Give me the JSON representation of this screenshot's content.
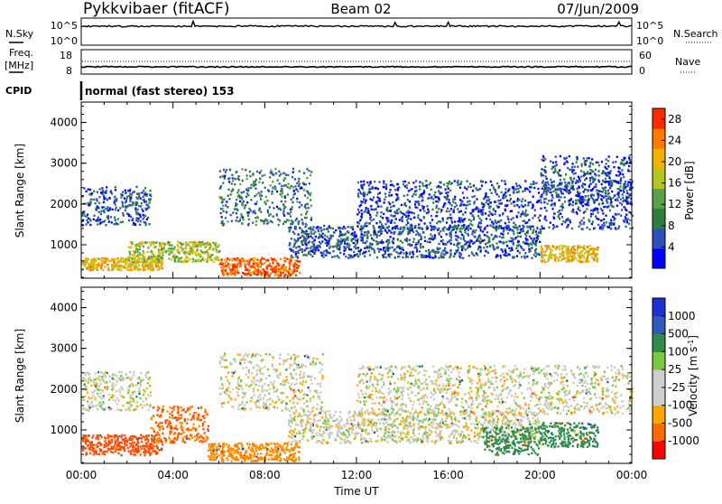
{
  "header": {
    "station": "Pykkvibaer (fitACF)",
    "beam": "Beam 02",
    "date": "07/Jun/2009"
  },
  "top_panels": {
    "nsky_label": "N.Sky",
    "nsearch_label": "N.Search",
    "freq_label_line1": "Freq.",
    "freq_label_line2": "[MHz]",
    "nave_label": "Nave",
    "cpid_label": "CPID",
    "cpid_text": "normal (fast stereo) 153",
    "noise_ticks_left": [
      "10^5",
      "10^0"
    ],
    "noise_ticks_right": [
      "10^5",
      "10^0"
    ],
    "freq_ticks": [
      "18",
      "8"
    ],
    "nave_ticks": [
      "60",
      "0"
    ]
  },
  "colors": {
    "power_scale": [
      "#0000ff",
      "#2e4fb8",
      "#2e7f3f",
      "#5aa14a",
      "#b4c51f",
      "#f0b400",
      "#ff7a00",
      "#ff2a00"
    ],
    "velocity_scale": [
      "#ff0000",
      "#ff6a00",
      "#ffa600",
      "#cfcfcf",
      "#cfcfcf",
      "#7ac943",
      "#2f8a4b",
      "#3159b8",
      "#1f2fd1"
    ],
    "velocity_bin_colors": [
      "#2323c8",
      "#2c52b5",
      "#2e8a4b",
      "#7ac943",
      "#c9c9c2",
      "#ffb000",
      "#ff8a00",
      "#ff4a00",
      "#ff1200"
    ]
  },
  "chart_data": [
    {
      "type": "heatmap",
      "title": "Power",
      "xlabel": "",
      "ylabel": "Slant Range [km]",
      "xlim": [
        "00:00",
        "24:00"
      ],
      "ylim": [
        180,
        4500
      ],
      "y_ticks": [
        "1000",
        "2000",
        "3000",
        "4000"
      ],
      "colorbar_label": "Power [dB]",
      "colorbar_ticks": [
        "28",
        "24",
        "20",
        "16",
        "12",
        "8",
        "4"
      ],
      "colorbar_range": [
        0,
        30
      ],
      "bands": [
        {
          "t0": 0.0,
          "t1": 3.0,
          "r0": 1500,
          "r1": 2450,
          "power": 6
        },
        {
          "t0": 0.0,
          "t1": 3.5,
          "r0": 400,
          "r1": 700,
          "power": 20
        },
        {
          "t0": 2.0,
          "t1": 6.0,
          "r0": 600,
          "r1": 1100,
          "power": 16
        },
        {
          "t0": 6.0,
          "t1": 9.5,
          "r0": 250,
          "r1": 700,
          "power": 26
        },
        {
          "t0": 6.0,
          "t1": 10.0,
          "r0": 1500,
          "r1": 2900,
          "power": 8
        },
        {
          "t0": 9.0,
          "t1": 20.0,
          "r0": 700,
          "r1": 1500,
          "power": 6
        },
        {
          "t0": 12.0,
          "t1": 24.0,
          "r0": 1400,
          "r1": 2600,
          "power": 5
        },
        {
          "t0": 20.0,
          "t1": 24.0,
          "r0": 2000,
          "r1": 3200,
          "power": 6
        },
        {
          "t0": 20.0,
          "t1": 22.5,
          "r0": 600,
          "r1": 1000,
          "power": 20
        }
      ]
    },
    {
      "type": "heatmap",
      "title": "Velocity",
      "xlabel": "Time UT",
      "ylabel": "Slant Range [km]",
      "xlim": [
        "00:00",
        "24:00"
      ],
      "ylim": [
        180,
        4500
      ],
      "x_ticks": [
        "00:00",
        "04:00",
        "08:00",
        "12:00",
        "16:00",
        "20:00",
        "00:00"
      ],
      "y_ticks": [
        "1000",
        "2000",
        "3000",
        "4000"
      ],
      "colorbar_label": "Velocity [m s",
      "colorbar_label_sup": "-1",
      "colorbar_label_end": "]",
      "colorbar_ticks": [
        "1000",
        "500",
        "100",
        "25",
        "-25",
        "-100",
        "-500",
        "-1000"
      ],
      "bands": [
        {
          "t0": 0.0,
          "t1": 3.0,
          "r0": 1500,
          "r1": 2450,
          "velocity": 0
        },
        {
          "t0": 0.0,
          "t1": 3.5,
          "r0": 400,
          "r1": 900,
          "velocity": -400
        },
        {
          "t0": 3.0,
          "t1": 5.5,
          "r0": 700,
          "r1": 1600,
          "velocity": -300
        },
        {
          "t0": 5.5,
          "t1": 9.5,
          "r0": 250,
          "r1": 700,
          "velocity": -150
        },
        {
          "t0": 6.0,
          "t1": 10.5,
          "r0": 1500,
          "r1": 2900,
          "velocity": 0
        },
        {
          "t0": 9.0,
          "t1": 20.0,
          "r0": 700,
          "r1": 1500,
          "velocity": 0
        },
        {
          "t0": 12.0,
          "t1": 24.0,
          "r0": 1400,
          "r1": 2600,
          "velocity": 0
        },
        {
          "t0": 17.5,
          "t1": 20.0,
          "r0": 400,
          "r1": 1100,
          "velocity": 150
        },
        {
          "t0": 20.0,
          "t1": 22.5,
          "r0": 600,
          "r1": 1200,
          "velocity": 200
        }
      ]
    }
  ]
}
